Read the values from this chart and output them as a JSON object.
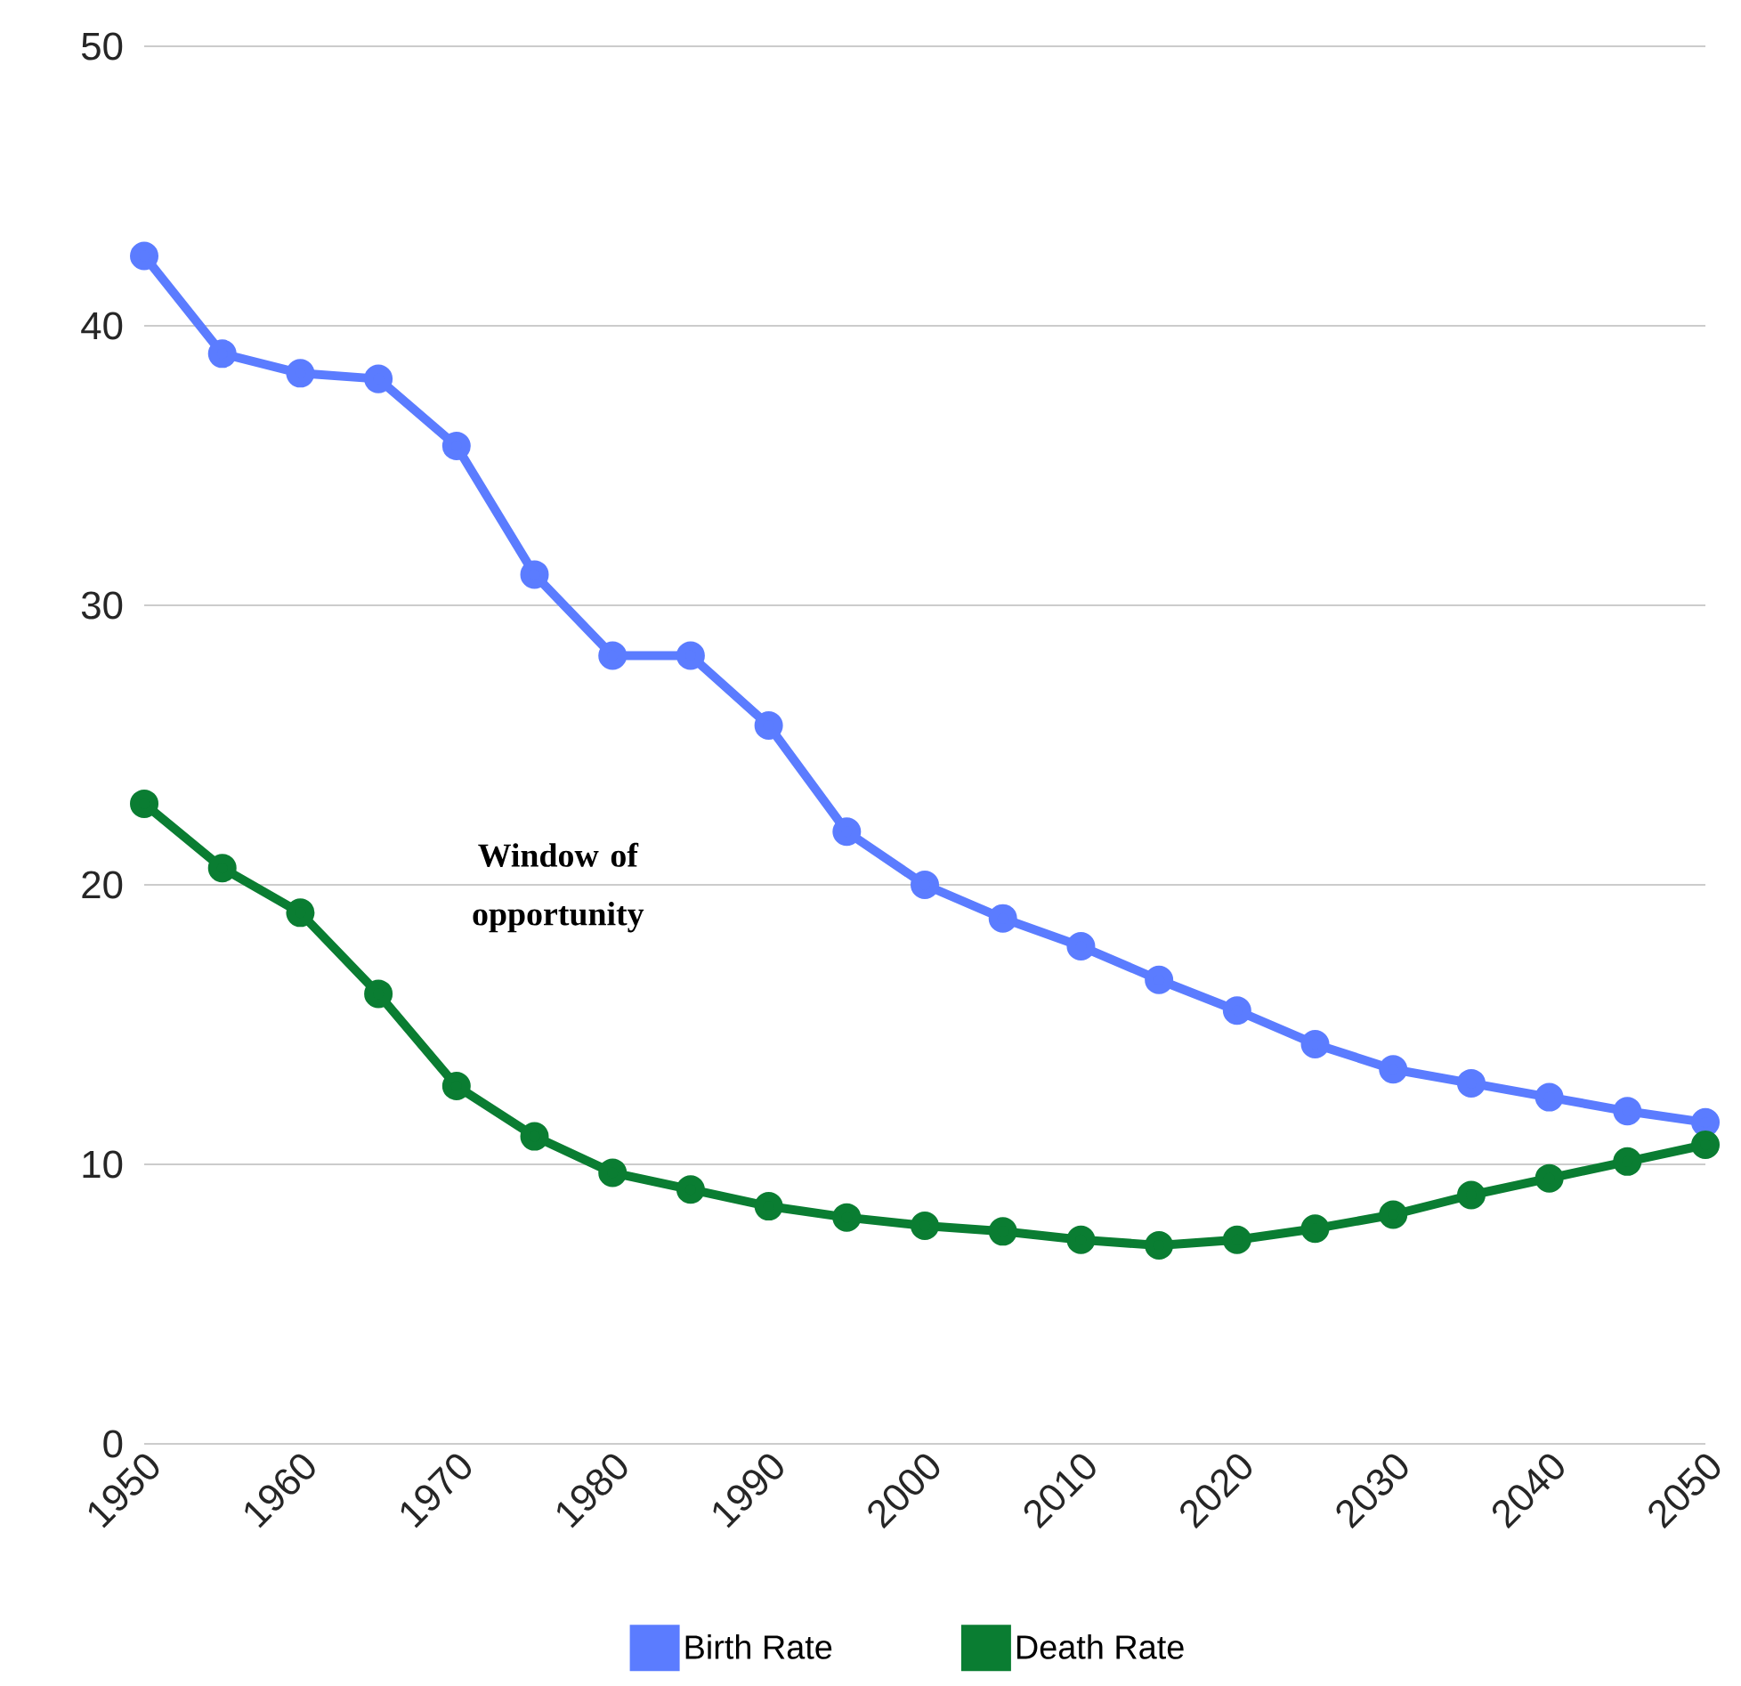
{
  "chart_data": {
    "type": "line",
    "x": [
      1950,
      1955,
      1960,
      1965,
      1970,
      1975,
      1980,
      1985,
      1990,
      1995,
      2000,
      2005,
      2010,
      2015,
      2020,
      2025,
      2030,
      2035,
      2040,
      2045,
      2050
    ],
    "series": [
      {
        "name": "Birth Rate",
        "color": "#5b7cff",
        "values": [
          42.5,
          39.0,
          38.3,
          38.1,
          35.7,
          31.1,
          28.2,
          28.2,
          25.7,
          21.9,
          20.0,
          18.8,
          17.8,
          16.6,
          15.5,
          14.3,
          13.4,
          12.9,
          12.4,
          11.9,
          11.5
        ]
      },
      {
        "name": "Death Rate",
        "color": "#0a7d32",
        "values": [
          22.9,
          20.6,
          19.0,
          16.1,
          12.8,
          11.0,
          9.7,
          9.1,
          8.5,
          8.1,
          7.8,
          7.6,
          7.3,
          7.1,
          7.3,
          7.7,
          8.2,
          8.9,
          9.5,
          10.1,
          10.7
        ]
      }
    ],
    "xlim": [
      1950,
      2050
    ],
    "xticks": [
      1950,
      1960,
      1970,
      1980,
      1990,
      2000,
      2010,
      2020,
      2030,
      2040,
      2050
    ],
    "ylim": [
      0,
      50
    ],
    "yticks": [
      0,
      10,
      20,
      30,
      40,
      50
    ],
    "grid": "y",
    "legend": "bottom",
    "marker": "circle",
    "line_style": "solid",
    "annotations": [
      "Window of opportunity"
    ]
  }
}
